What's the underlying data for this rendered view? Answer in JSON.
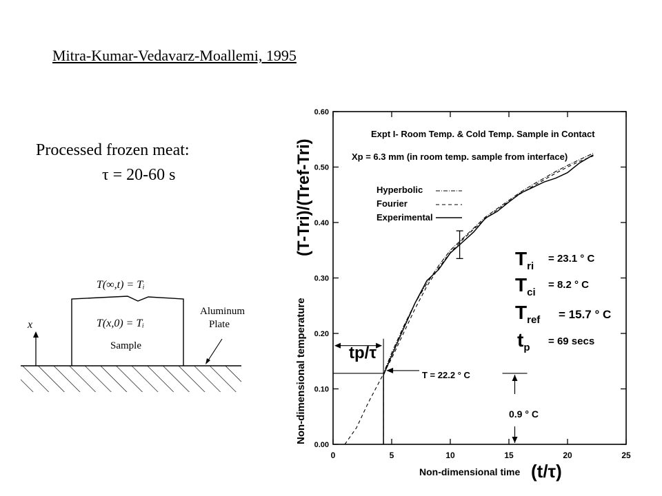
{
  "slide": {
    "title": "Mitra-Kumar-Vedavarz-Moallemi, 1995",
    "material": "Processed frozen meat:",
    "tau": "τ = 20-60 s"
  },
  "sketch": {
    "top_condition": "T(∞,t) = Tᵢ",
    "initial_condition": "T(x,0) = Tᵢ",
    "sample_label": "Sample",
    "axis_label": "x",
    "plate_label_line1": "Aluminum",
    "plate_label_line2": "Plate"
  },
  "chart_data": {
    "type": "line",
    "title": "Expt I- Room Temp. & Cold Temp. Sample in Contact",
    "subtitle": "Xp = 6.3 mm (in room temp. sample from interface)",
    "xlabel": "Non-dimensional time",
    "xlabel_symbol": "(t/τ)",
    "ylabel": "Non-dimensional temperature",
    "ylabel_formula": "(T-Tri)/(Tref-Tri)",
    "xlim": [
      0,
      25
    ],
    "ylim": [
      0,
      0.6
    ],
    "x_ticks": [
      "0",
      "5",
      "10",
      "15",
      "20",
      "25"
    ],
    "y_ticks": [
      "0.00",
      "0.10",
      "0.20",
      "0.30",
      "0.40",
      "0.50",
      "0.60"
    ],
    "legend_position": "upper-left",
    "series": [
      {
        "name": "Hyperbolic",
        "x": [
          4.3,
          4.3,
          5,
          6,
          7,
          8,
          9,
          10,
          11,
          12,
          13,
          14,
          15,
          16,
          17,
          18,
          19,
          20,
          21,
          22.2
        ],
        "y": [
          0.0,
          0.128,
          0.165,
          0.212,
          0.255,
          0.29,
          0.322,
          0.35,
          0.37,
          0.39,
          0.41,
          0.425,
          0.44,
          0.455,
          0.468,
          0.48,
          0.492,
          0.503,
          0.513,
          0.525
        ]
      },
      {
        "name": "Fourier",
        "x": [
          1.0,
          2,
          3,
          4,
          5,
          6,
          7,
          8,
          9,
          10,
          11,
          12,
          13,
          14,
          15,
          16,
          17,
          18,
          19,
          20,
          21,
          22.2
        ],
        "y": [
          0.0,
          0.03,
          0.075,
          0.115,
          0.155,
          0.2,
          0.245,
          0.285,
          0.318,
          0.346,
          0.368,
          0.388,
          0.407,
          0.423,
          0.438,
          0.452,
          0.465,
          0.477,
          0.489,
          0.5,
          0.51,
          0.52
        ]
      },
      {
        "name": "Experimental",
        "x": [
          4.3,
          4.3,
          5,
          6,
          7,
          8,
          9,
          10,
          10.8,
          12,
          13,
          14,
          15,
          16,
          17,
          18,
          19,
          20,
          21,
          22.2
        ],
        "y": [
          0.0,
          0.125,
          0.16,
          0.208,
          0.255,
          0.295,
          0.315,
          0.345,
          0.36,
          0.383,
          0.408,
          0.42,
          0.437,
          0.453,
          0.463,
          0.473,
          0.48,
          0.49,
          0.507,
          0.522
        ]
      }
    ],
    "error_bar": {
      "x": 10.8,
      "y_low": 0.335,
      "y_high": 0.385
    },
    "params": {
      "Tri": "23.1 ° C",
      "Tci": "8.2 ° C",
      "Tref": "15.7 ° C",
      "tp": "69 secs"
    },
    "annotations": {
      "tp_over_tau": "tp/τ",
      "arrival_temp": "T = 22.2 ° C",
      "delta_temp": "0.9 ° C"
    },
    "arrival_level": 0.128,
    "arrival_time": 4.3,
    "delta_band": {
      "x": 15.5,
      "y_low": 0.0,
      "y_high": 0.128
    }
  }
}
